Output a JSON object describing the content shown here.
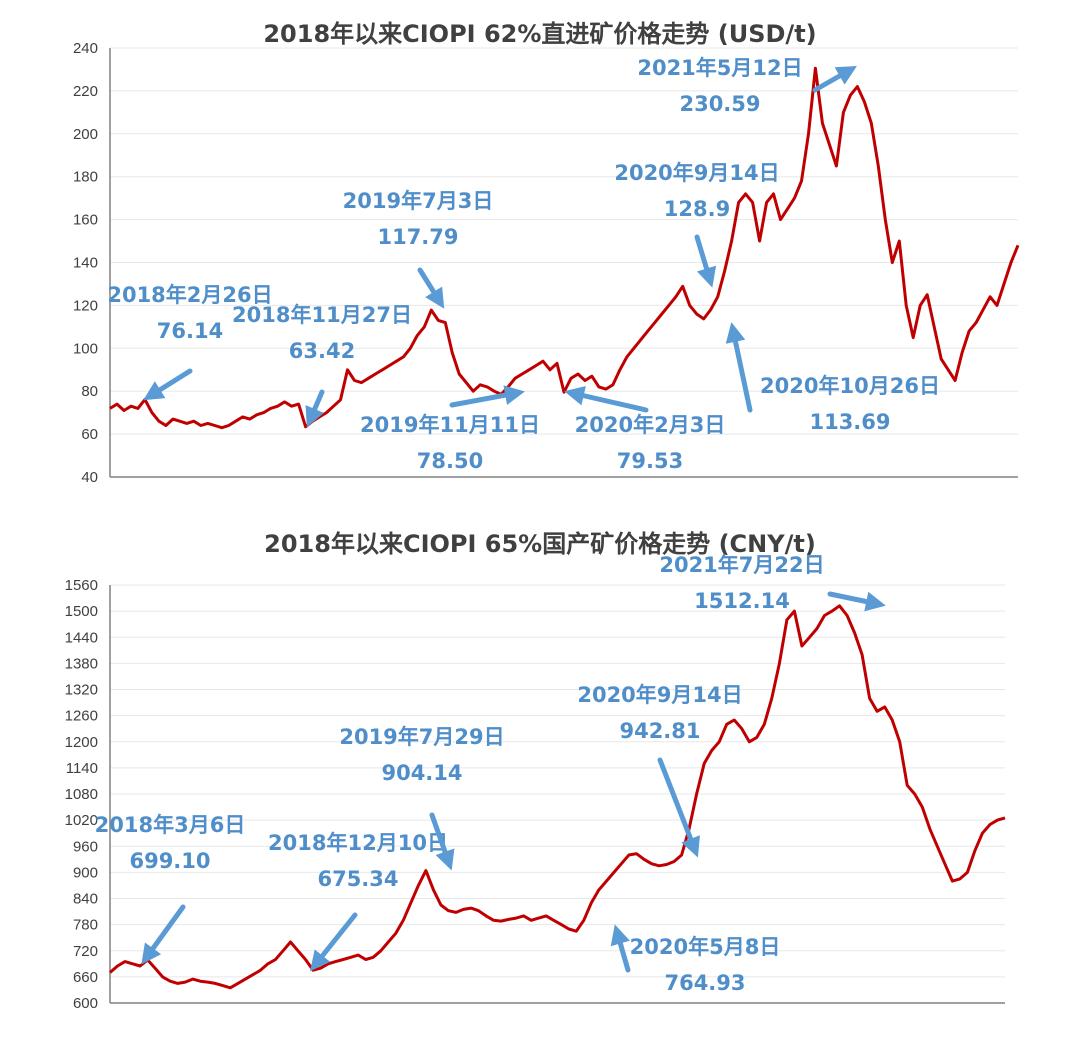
{
  "chart_data": [
    {
      "type": "line",
      "title": "2018年以来CIOPI 62%直进矿价格走势 (USD/t)",
      "ylim": [
        40,
        240
      ],
      "yticks": [
        "40",
        "60",
        "80",
        "100",
        "120",
        "140",
        "160",
        "180",
        "200",
        "220",
        "240"
      ],
      "grid": true,
      "legend": "none",
      "color": "#c00000",
      "series": [
        {
          "values": [
            72,
            74,
            71,
            73,
            72,
            76.14,
            70,
            66,
            64,
            67,
            66,
            65,
            66,
            64,
            65,
            64,
            63,
            64,
            66,
            68,
            67,
            69,
            70,
            72,
            73,
            75,
            73,
            74,
            63.42,
            66,
            68,
            70,
            73,
            76,
            90,
            85,
            84,
            86,
            88,
            90,
            92,
            94,
            96,
            100,
            106,
            110,
            117.79,
            113,
            112,
            98,
            88,
            84,
            80,
            83,
            82,
            80,
            78.5,
            82,
            86,
            88,
            90,
            92,
            94,
            90,
            93,
            79.53,
            86,
            88,
            85,
            87,
            82,
            81,
            83,
            90,
            96,
            100,
            104,
            108,
            112,
            116,
            120,
            124,
            128.9,
            120,
            116,
            113.69,
            118,
            124,
            136,
            150,
            168,
            172,
            168,
            150,
            168,
            172,
            160,
            165,
            170,
            178,
            200,
            230.59,
            205,
            195,
            185,
            210,
            218,
            222,
            215,
            205,
            185,
            160,
            140,
            150,
            120,
            105,
            120,
            125,
            110,
            95,
            90,
            85,
            98,
            108,
            112,
            118,
            124,
            120,
            130,
            140,
            148
          ]
        }
      ],
      "annotations": [
        {
          "date": "2018年2月26日",
          "value": "76.14"
        },
        {
          "date": "2018年11月27日",
          "value": "63.42"
        },
        {
          "date": "2019年7月3日",
          "value": "117.79"
        },
        {
          "date": "2019年11月11日",
          "value": "78.50"
        },
        {
          "date": "2020年2月3日",
          "value": "79.53"
        },
        {
          "date": "2020年9月14日",
          "value": "128.9"
        },
        {
          "date": "2020年10月26日",
          "value": "113.69"
        },
        {
          "date": "2021年5月12日",
          "value": "230.59"
        }
      ]
    },
    {
      "type": "line",
      "title": "2018年以来CIOPI 65%国产矿价格走势 (CNY/t)",
      "ylim": [
        600,
        1560
      ],
      "yticks": [
        "600",
        "660",
        "720",
        "780",
        "840",
        "900",
        "960",
        "1020",
        "1080",
        "1140",
        "1200",
        "1260",
        "1320",
        "1380",
        "1440",
        "1500",
        "1560"
      ],
      "grid": true,
      "legend": "none",
      "color": "#c00000",
      "series": [
        {
          "values": [
            670,
            685,
            695,
            690,
            685,
            699.1,
            680,
            660,
            650,
            645,
            648,
            655,
            650,
            648,
            645,
            640,
            635,
            645,
            655,
            665,
            675,
            690,
            700,
            720,
            740,
            720,
            700,
            675.34,
            680,
            690,
            695,
            700,
            705,
            710,
            700,
            705,
            720,
            740,
            760,
            790,
            830,
            870,
            904.14,
            860,
            825,
            812,
            808,
            815,
            818,
            812,
            800,
            790,
            788,
            792,
            795,
            800,
            790,
            795,
            800,
            790,
            780,
            770,
            764.93,
            790,
            830,
            860,
            880,
            900,
            920,
            940,
            942.81,
            930,
            920,
            915,
            918,
            925,
            940,
            1000,
            1080,
            1150,
            1180,
            1200,
            1240,
            1250,
            1230,
            1200,
            1210,
            1240,
            1300,
            1380,
            1480,
            1500,
            1420,
            1440,
            1460,
            1490,
            1500,
            1512.14,
            1490,
            1450,
            1400,
            1300,
            1270,
            1280,
            1250,
            1200,
            1100,
            1080,
            1050,
            1000,
            960,
            920,
            880,
            885,
            900,
            950,
            990,
            1010,
            1020,
            1025
          ]
        }
      ],
      "annotations": [
        {
          "date": "2018年3月6日",
          "value": "699.10"
        },
        {
          "date": "2018年12月10日",
          "value": "675.34"
        },
        {
          "date": "2019年7月29日",
          "value": "904.14"
        },
        {
          "date": "2020年5月8日",
          "value": "764.93"
        },
        {
          "date": "2020年9月14日",
          "value": "942.81"
        },
        {
          "date": "2021年7月22日",
          "value": "1512.14"
        }
      ]
    }
  ]
}
